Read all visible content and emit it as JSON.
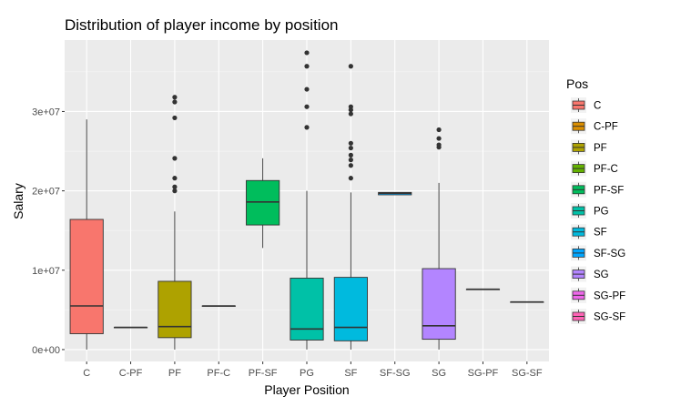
{
  "chart_data": {
    "type": "boxplot",
    "title": "Distribution of player income by position",
    "xlabel": "Player Position",
    "ylabel": "Salary",
    "ylim": [
      -1500000,
      39000000
    ],
    "yticks": [
      {
        "value": 0,
        "label": "0e+00"
      },
      {
        "value": 10000000,
        "label": "1e+07"
      },
      {
        "value": 20000000,
        "label": "2e+07"
      },
      {
        "value": 30000000,
        "label": "3e+07"
      }
    ],
    "grid": true,
    "legend": {
      "title": "Pos",
      "placement": "right"
    },
    "categories": [
      "C",
      "C-PF",
      "PF",
      "PF-C",
      "PF-SF",
      "PG",
      "SF",
      "SF-SG",
      "SG",
      "SG-PF",
      "SG-SF"
    ],
    "boxes": [
      {
        "pos": "C",
        "color": "#F8766D",
        "min": 0,
        "q1": 2000000,
        "median": 5500000,
        "q3": 16400000,
        "max": 29000000,
        "outliers": []
      },
      {
        "pos": "C-PF",
        "color": "#DB8E00",
        "min": 2800000,
        "q1": 2800000,
        "median": 2800000,
        "q3": 2800000,
        "max": 2800000,
        "outliers": []
      },
      {
        "pos": "PF",
        "color": "#AEA200",
        "min": 0,
        "q1": 1500000,
        "median": 2900000,
        "q3": 8600000,
        "max": 17400000,
        "outliers": [
          20000000,
          20500000,
          21600000,
          24100000,
          29200000,
          31200000,
          31800000
        ]
      },
      {
        "pos": "PF-C",
        "color": "#64B200",
        "min": 5500000,
        "q1": 5500000,
        "median": 5500000,
        "q3": 5500000,
        "max": 5500000,
        "outliers": []
      },
      {
        "pos": "PF-SF",
        "color": "#00BD5C",
        "min": 12800000,
        "q1": 15700000,
        "median": 18600000,
        "q3": 21300000,
        "max": 24100000,
        "outliers": []
      },
      {
        "pos": "PG",
        "color": "#00C1A7",
        "min": 0,
        "q1": 1200000,
        "median": 2600000,
        "q3": 9000000,
        "max": 20000000,
        "outliers": [
          28000000,
          30600000,
          32800000,
          35700000,
          37400000
        ]
      },
      {
        "pos": "SF",
        "color": "#00BADE",
        "min": 0,
        "q1": 1100000,
        "median": 2800000,
        "q3": 9100000,
        "max": 19800000,
        "outliers": [
          21600000,
          23200000,
          23900000,
          24500000,
          25400000,
          26000000,
          29700000,
          30200000,
          30600000,
          35700000
        ]
      },
      {
        "pos": "SF-SG",
        "color": "#00A6FF",
        "min": 19500000,
        "q1": 19500000,
        "median": 19700000,
        "q3": 19800000,
        "max": 19800000,
        "outliers": []
      },
      {
        "pos": "SG",
        "color": "#B385FF",
        "min": 0,
        "q1": 1300000,
        "median": 3000000,
        "q3": 10200000,
        "max": 21000000,
        "outliers": [
          25500000,
          25800000,
          26600000,
          27700000
        ]
      },
      {
        "pos": "SG-PF",
        "color": "#EF67EB",
        "min": 7600000,
        "q1": 7600000,
        "median": 7600000,
        "q3": 7600000,
        "max": 7600000,
        "outliers": []
      },
      {
        "pos": "SG-SF",
        "color": "#FF63B6",
        "min": 6000000,
        "q1": 6000000,
        "median": 6000000,
        "q3": 6000000,
        "max": 6000000,
        "outliers": []
      }
    ]
  }
}
